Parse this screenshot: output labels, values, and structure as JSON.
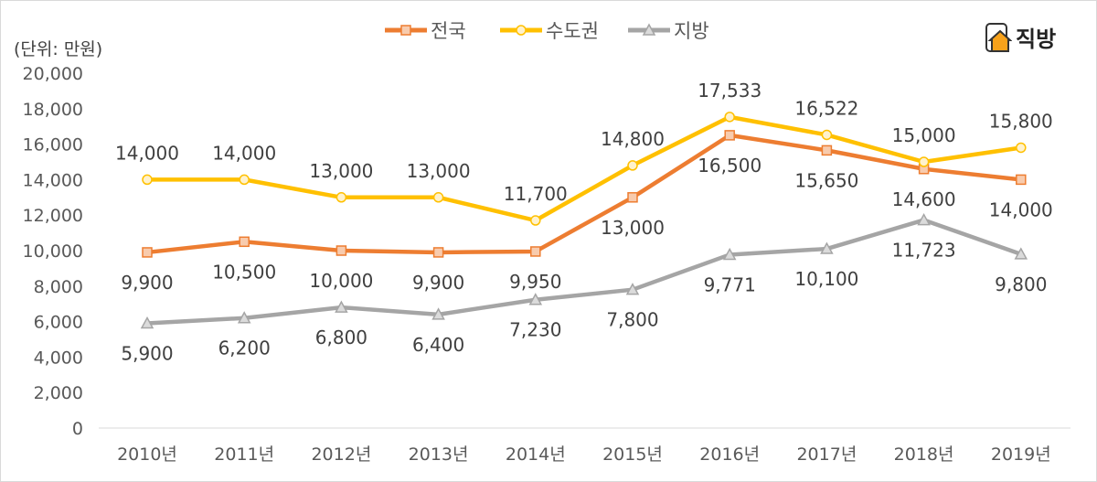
{
  "unit_label": "(단위: 만원)",
  "logo": {
    "text": "직방"
  },
  "chart_data": {
    "type": "line",
    "categories": [
      "2010년",
      "2011년",
      "2012년",
      "2013년",
      "2014년",
      "2015년",
      "2016년",
      "2017년",
      "2018년",
      "2019년"
    ],
    "ylim": [
      0,
      20000
    ],
    "yticks": [
      0,
      2000,
      4000,
      6000,
      8000,
      10000,
      12000,
      14000,
      16000,
      18000,
      20000
    ],
    "ytick_labels": [
      "0",
      "2,000",
      "4,000",
      "6,000",
      "8,000",
      "10,000",
      "12,000",
      "14,000",
      "16,000",
      "18,000",
      "20,000"
    ],
    "grid": false,
    "legend": "top",
    "series": [
      {
        "name": "전국",
        "color": "#ED7D31",
        "marker": "square",
        "marker_fill": "#F8CBAD",
        "label_pos": "below",
        "values": [
          9900,
          10500,
          10000,
          9900,
          9950,
          13000,
          16500,
          15650,
          14600,
          14000
        ],
        "labels": [
          "9,900",
          "10,500",
          "10,000",
          "9,900",
          "9,950",
          "13,000",
          "16,500",
          "15,650",
          "14,600",
          "14,000"
        ]
      },
      {
        "name": "수도권",
        "color": "#FFC000",
        "marker": "circle",
        "marker_fill": "#FFF2CC",
        "label_pos": "above",
        "values": [
          14000,
          14000,
          13000,
          13000,
          11700,
          14800,
          17533,
          16522,
          15000,
          15800
        ],
        "labels": [
          "14,000",
          "14,000",
          "13,000",
          "13,000",
          "11,700",
          "14,800",
          "17,533",
          "16,522",
          "15,000",
          "15,800"
        ]
      },
      {
        "name": "지방",
        "color": "#A5A5A5",
        "marker": "triangle",
        "marker_fill": "#DBDBDB",
        "label_pos": "below",
        "values": [
          5900,
          6200,
          6800,
          6400,
          7230,
          7800,
          9771,
          10100,
          11723,
          9800
        ],
        "labels": [
          "5,900",
          "6,200",
          "6,800",
          "6,400",
          "7,230",
          "7,800",
          "9,771",
          "10,100",
          "11,723",
          "9,800"
        ]
      }
    ]
  }
}
